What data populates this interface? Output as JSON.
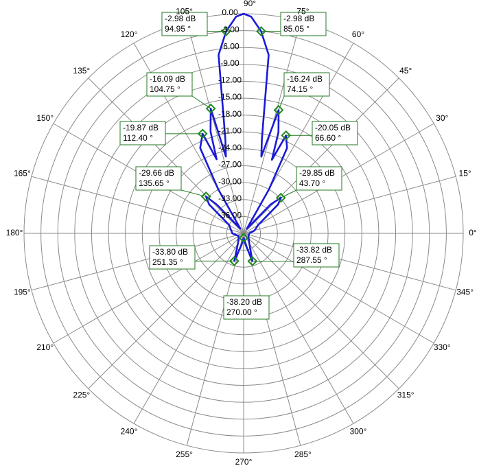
{
  "chart_data": {
    "type": "polar",
    "color": "#1a1ad8",
    "marker_color": "#1f8a1f",
    "rlim": [
      -39,
      0
    ],
    "rticks": [
      {
        "value": 0,
        "label": "0.00"
      },
      {
        "value": -3,
        "label": "-3.00"
      },
      {
        "value": -6,
        "label": "-6.00"
      },
      {
        "value": -9,
        "label": "-9.00"
      },
      {
        "value": -12,
        "label": "-12.00"
      },
      {
        "value": -15,
        "label": "-15.00"
      },
      {
        "value": -18,
        "label": "-18.00"
      },
      {
        "value": -21,
        "label": "-21.00"
      },
      {
        "value": -24,
        "label": "-24.00"
      },
      {
        "value": -27,
        "label": "-27.00"
      },
      {
        "value": -30,
        "label": "-30.00"
      },
      {
        "value": -33,
        "label": "-33.00"
      },
      {
        "value": -36,
        "label": "-36.00"
      }
    ],
    "thetaticks": [
      {
        "value": 0,
        "label": "0°"
      },
      {
        "value": 15,
        "label": "15°"
      },
      {
        "value": 30,
        "label": "30°"
      },
      {
        "value": 45,
        "label": "45°"
      },
      {
        "value": 60,
        "label": "60°"
      },
      {
        "value": 75,
        "label": "75°"
      },
      {
        "value": 90,
        "label": "90°"
      },
      {
        "value": 105,
        "label": "105°"
      },
      {
        "value": 120,
        "label": "120°"
      },
      {
        "value": 135,
        "label": "135°"
      },
      {
        "value": 150,
        "label": "150°"
      },
      {
        "value": 165,
        "label": "165°"
      },
      {
        "value": 180,
        "label": "180°"
      },
      {
        "value": 195,
        "label": "195°"
      },
      {
        "value": 210,
        "label": "210°"
      },
      {
        "value": 225,
        "label": "225°"
      },
      {
        "value": 240,
        "label": "240°"
      },
      {
        "value": 255,
        "label": "255°"
      },
      {
        "value": 270,
        "label": "270°"
      },
      {
        "value": 285,
        "label": "285°"
      },
      {
        "value": 300,
        "label": "300°"
      },
      {
        "value": 315,
        "label": "315°"
      },
      {
        "value": 330,
        "label": "330°"
      },
      {
        "value": 345,
        "label": "345°"
      }
    ],
    "theta": [
      0,
      15,
      30,
      40,
      43.7,
      47,
      55,
      60,
      63,
      66.6,
      69,
      71,
      74.15,
      77,
      79,
      82,
      85.05,
      88,
      90,
      92,
      94.95,
      98,
      101,
      103,
      104.75,
      108,
      110,
      112.4,
      117,
      120,
      125,
      133,
      135.65,
      140,
      150,
      180,
      210,
      240,
      251.35,
      260,
      270,
      280,
      287.55,
      300,
      330,
      360
    ],
    "values": [
      -38,
      -37,
      -36,
      -31,
      -29.85,
      -32,
      -38,
      -30,
      -22,
      -20.05,
      -25,
      -20,
      -16.24,
      -25,
      -22,
      -7,
      -2.98,
      -0.5,
      0,
      -0.5,
      -2.98,
      -7,
      -22,
      -25,
      -16.09,
      -20,
      -25,
      -19.87,
      -22,
      -30,
      -38,
      -32,
      -29.66,
      -31,
      -36,
      -37,
      -38,
      -37,
      -33.8,
      -37,
      -38.2,
      -37,
      -33.82,
      -37,
      -38,
      -38
    ],
    "markers": [
      {
        "angle": 94.95,
        "value": -2.98,
        "value_label": "-2.98 dB",
        "angle_label": "94.95 °"
      },
      {
        "angle": 85.05,
        "value": -2.98,
        "value_label": "-2.98 dB",
        "angle_label": "85.05 °"
      },
      {
        "angle": 104.75,
        "value": -16.09,
        "value_label": "-16.09 dB",
        "angle_label": "104.75 °"
      },
      {
        "angle": 74.15,
        "value": -16.24,
        "value_label": "-16.24 dB",
        "angle_label": "74.15 °"
      },
      {
        "angle": 112.4,
        "value": -19.87,
        "value_label": "-19.87 dB",
        "angle_label": "112.40 °"
      },
      {
        "angle": 66.6,
        "value": -20.05,
        "value_label": "-20.05 dB",
        "angle_label": "66.60 °"
      },
      {
        "angle": 135.65,
        "value": -29.66,
        "value_label": "-29.66 dB",
        "angle_label": "135.65 °"
      },
      {
        "angle": 43.7,
        "value": -29.85,
        "value_label": "-29.85 dB",
        "angle_label": "43.70 °"
      },
      {
        "angle": 251.35,
        "value": -33.8,
        "value_label": "-33.80 dB",
        "angle_label": "251.35 °"
      },
      {
        "angle": 287.55,
        "value": -33.82,
        "value_label": "-33.82 dB",
        "angle_label": "287.55 °"
      },
      {
        "angle": 270,
        "value": -38.2,
        "value_label": "-38.20 dB",
        "angle_label": "270.00 °"
      }
    ]
  }
}
